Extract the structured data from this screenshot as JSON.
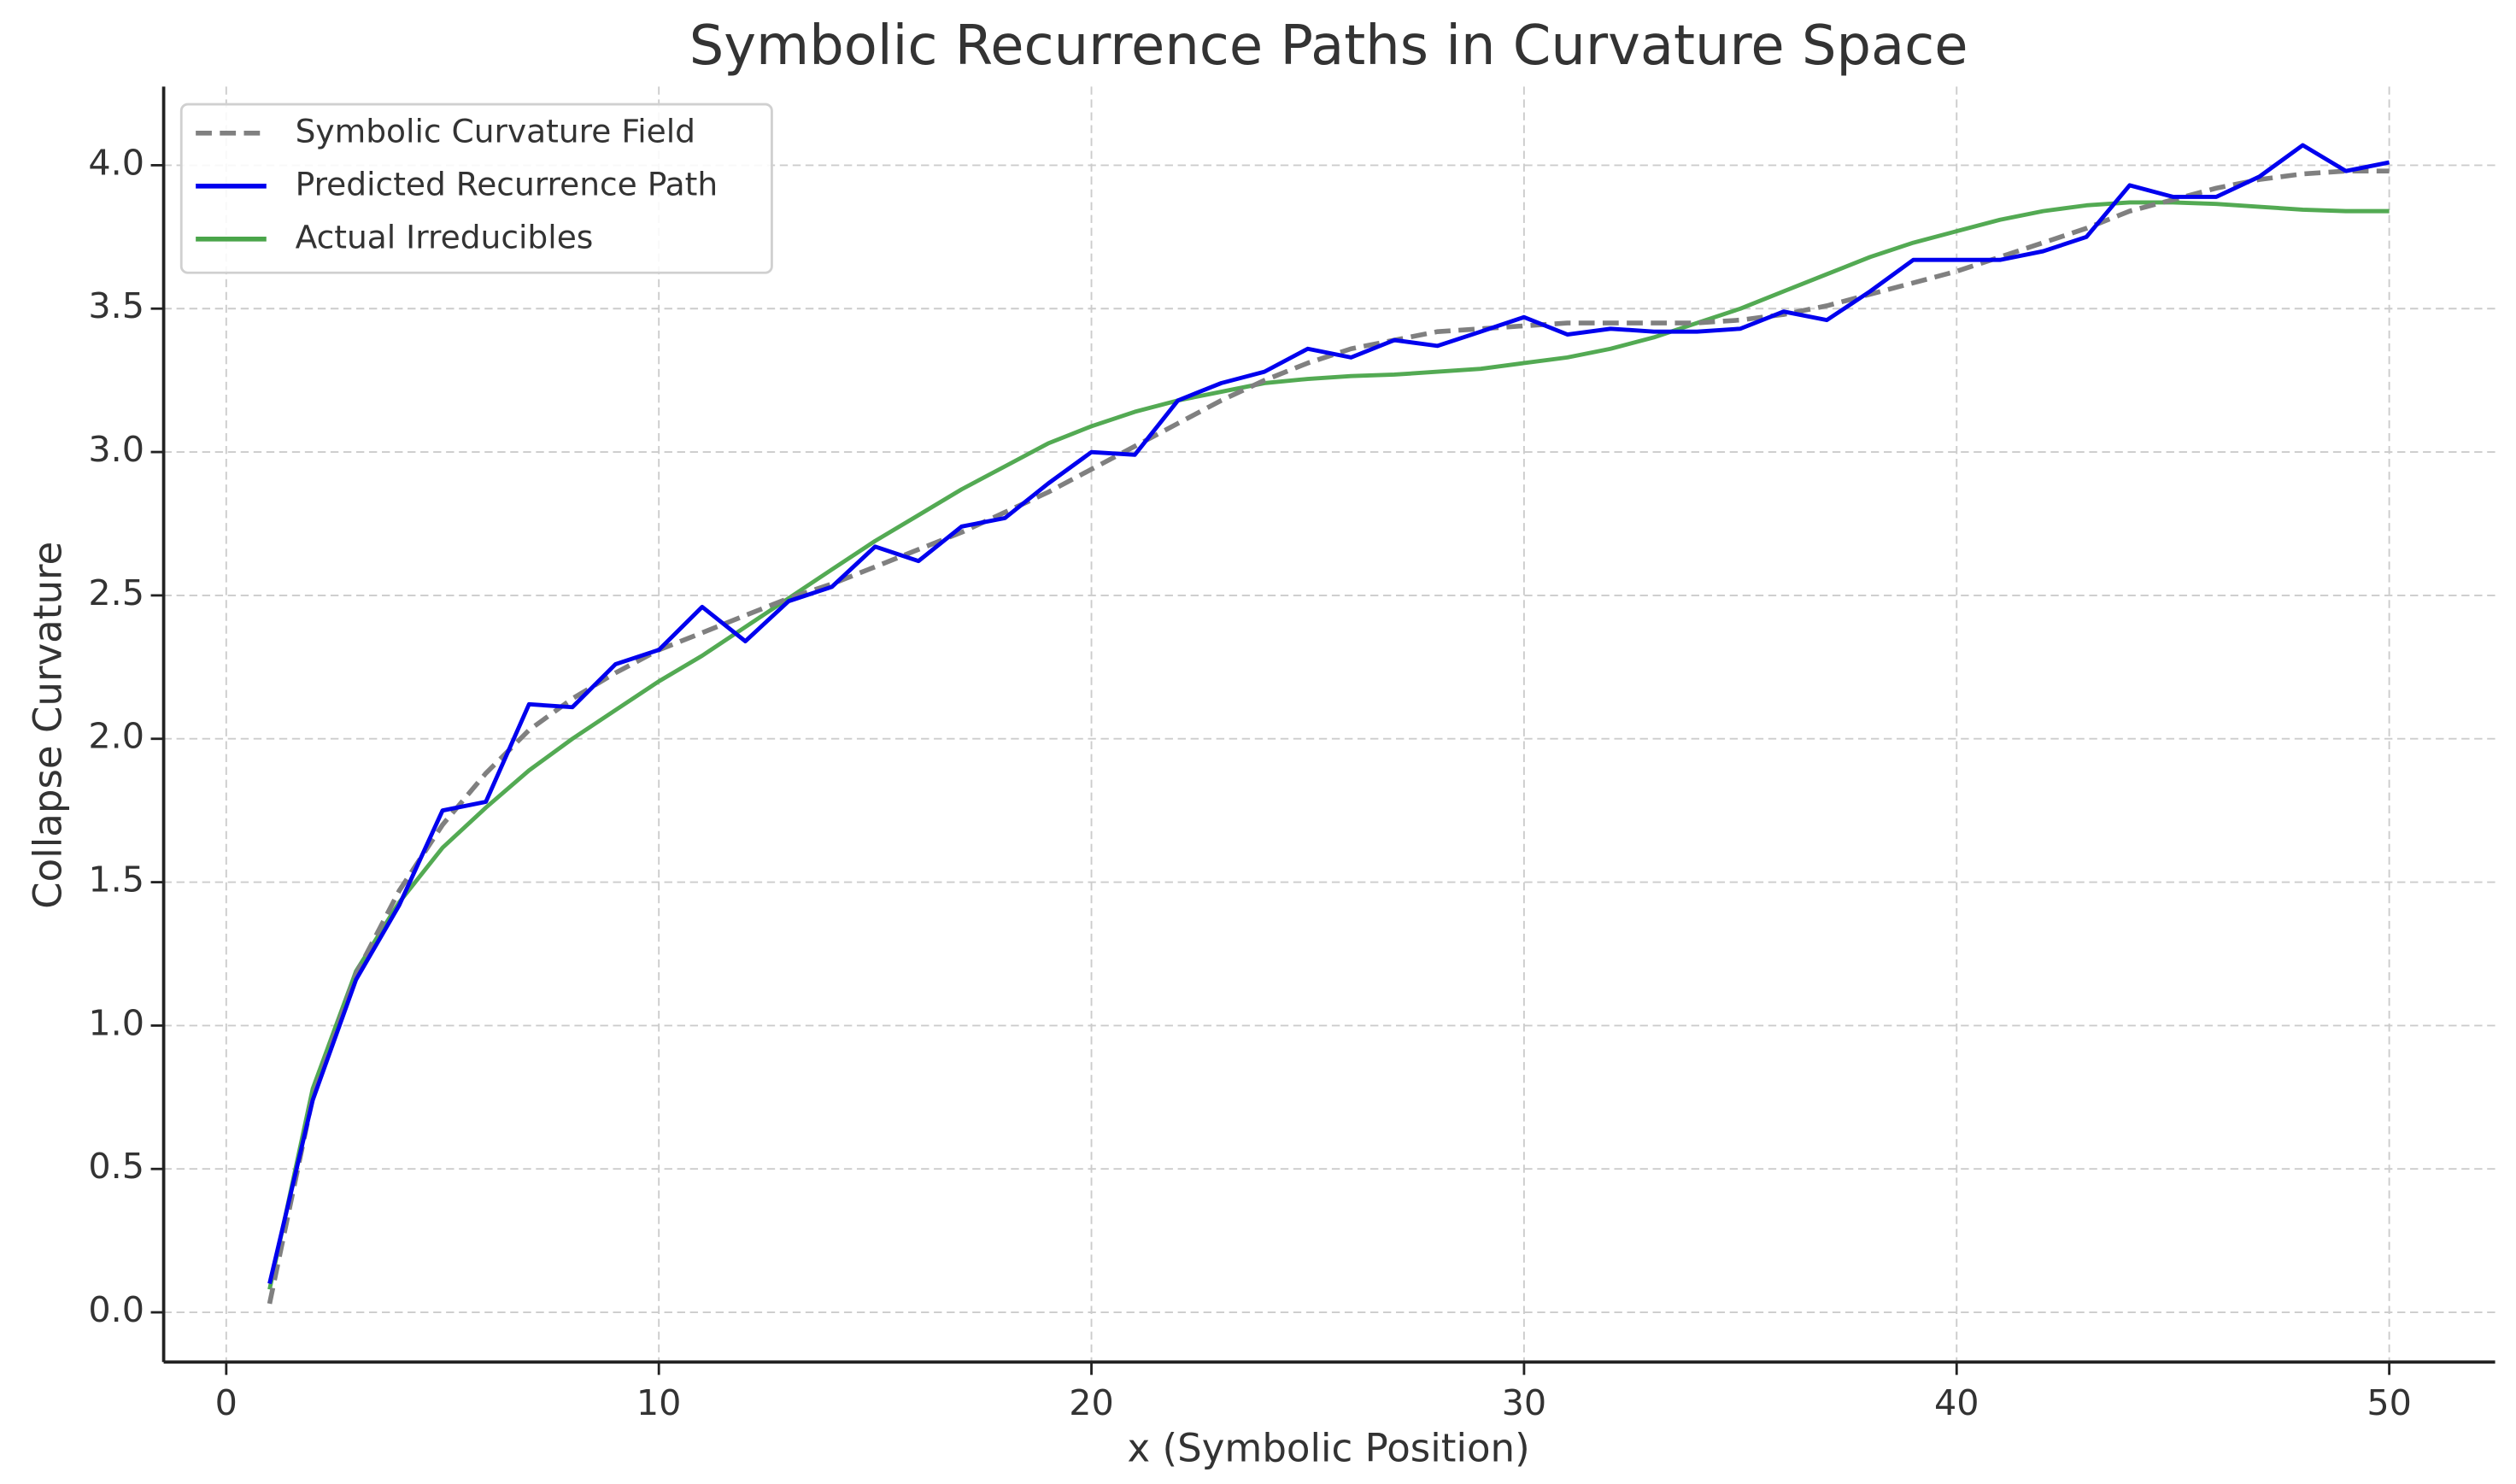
{
  "chart_data": {
    "type": "line",
    "title": "Symbolic Recurrence Paths in Curvature Space",
    "xlabel": "x (Symbolic Position)",
    "ylabel": "Collapse Curvature",
    "xlim": [
      -1.45,
      52.5
    ],
    "ylim": [
      -0.17,
      4.27
    ],
    "xticks": [
      0,
      10,
      20,
      30,
      40,
      50
    ],
    "yticks": [
      0.0,
      0.5,
      1.0,
      1.5,
      2.0,
      2.5,
      3.0,
      3.5,
      4.0
    ],
    "xtick_labels": [
      "0",
      "10",
      "20",
      "30",
      "40",
      "50"
    ],
    "ytick_labels": [
      "0.0",
      "0.5",
      "1.0",
      "1.5",
      "2.0",
      "2.5",
      "3.0",
      "3.5",
      "4.0"
    ],
    "grid": true,
    "legend_position": "upper left",
    "x": [
      1,
      2,
      3,
      4,
      5,
      6,
      7,
      8,
      9,
      10,
      11,
      12,
      13,
      14,
      15,
      16,
      17,
      18,
      19,
      20,
      21,
      22,
      23,
      24,
      25,
      26,
      27,
      28,
      29,
      30,
      31,
      32,
      33,
      34,
      35,
      36,
      37,
      38,
      39,
      40,
      41,
      42,
      43,
      44,
      45,
      46,
      47,
      48,
      49,
      50
    ],
    "series": [
      {
        "name": "Symbolic Curvature Field",
        "color": "#808080",
        "style": "dashed",
        "values": [
          0.03,
          0.75,
          1.18,
          1.47,
          1.7,
          1.88,
          2.03,
          2.14,
          2.23,
          2.31,
          2.37,
          2.43,
          2.49,
          2.54,
          2.6,
          2.66,
          2.72,
          2.79,
          2.86,
          2.94,
          3.02,
          3.1,
          3.18,
          3.25,
          3.31,
          3.36,
          3.39,
          3.42,
          3.43,
          3.44,
          3.45,
          3.45,
          3.45,
          3.45,
          3.46,
          3.48,
          3.51,
          3.55,
          3.59,
          3.63,
          3.68,
          3.73,
          3.78,
          3.84,
          3.88,
          3.92,
          3.95,
          3.97,
          3.98,
          3.98
        ]
      },
      {
        "name": "Predicted Recurrence Path",
        "color": "#0000ee",
        "style": "solid",
        "values": [
          0.1,
          0.74,
          1.16,
          1.42,
          1.75,
          1.78,
          2.12,
          2.11,
          2.26,
          2.31,
          2.46,
          2.34,
          2.48,
          2.53,
          2.67,
          2.62,
          2.74,
          2.77,
          2.89,
          3.0,
          2.99,
          3.18,
          3.24,
          3.28,
          3.36,
          3.33,
          3.39,
          3.37,
          3.42,
          3.47,
          3.41,
          3.43,
          3.42,
          3.42,
          3.43,
          3.49,
          3.46,
          3.56,
          3.67,
          3.67,
          3.67,
          3.7,
          3.75,
          3.93,
          3.89,
          3.89,
          3.96,
          4.07,
          3.98,
          4.01
        ]
      },
      {
        "name": "Actual Irreducibles",
        "color": "#4aa54a",
        "style": "solid",
        "values": [
          0.08,
          0.78,
          1.19,
          1.43,
          1.62,
          1.76,
          1.89,
          2.0,
          2.1,
          2.2,
          2.29,
          2.39,
          2.49,
          2.59,
          2.69,
          2.78,
          2.87,
          2.95,
          3.03,
          3.09,
          3.14,
          3.18,
          3.21,
          3.24,
          3.255,
          3.265,
          3.27,
          3.28,
          3.29,
          3.31,
          3.33,
          3.36,
          3.4,
          3.45,
          3.5,
          3.56,
          3.62,
          3.68,
          3.73,
          3.77,
          3.81,
          3.84,
          3.86,
          3.87,
          3.87,
          3.865,
          3.855,
          3.845,
          3.84,
          3.84
        ]
      }
    ]
  }
}
